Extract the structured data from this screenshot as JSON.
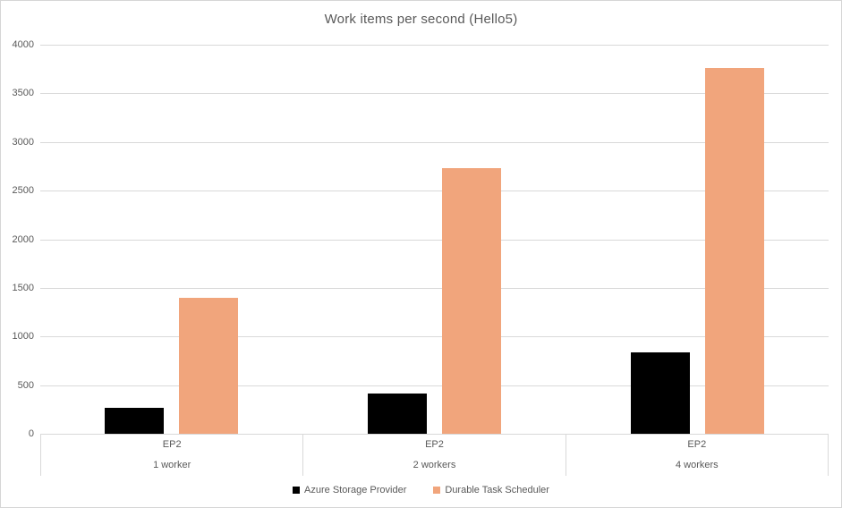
{
  "chart_data": {
    "type": "bar",
    "title": "Work items per second (Hello5)",
    "categories": [
      "1 worker",
      "2 workers",
      "4 workers"
    ],
    "category_groups": [
      "EP2",
      "EP2",
      "EP2"
    ],
    "series": [
      {
        "name": "Azure Storage Provider",
        "color": "#000000",
        "values": [
          265,
          415,
          840
        ]
      },
      {
        "name": "Durable Task Scheduler",
        "color": "#f1a57c",
        "values": [
          1395,
          2735,
          3765
        ]
      }
    ],
    "y_axis": {
      "min": 0,
      "max": 4000,
      "step": 500,
      "ticks": [
        0,
        500,
        1000,
        1500,
        2000,
        2500,
        3000,
        3500,
        4000
      ]
    },
    "grid": true,
    "legend_position": "bottom",
    "colors": {
      "grid_color": "#d9d9d9",
      "text_color": "#595959",
      "canvas_border": "#d6d6d6",
      "background": "#ffffff"
    }
  }
}
